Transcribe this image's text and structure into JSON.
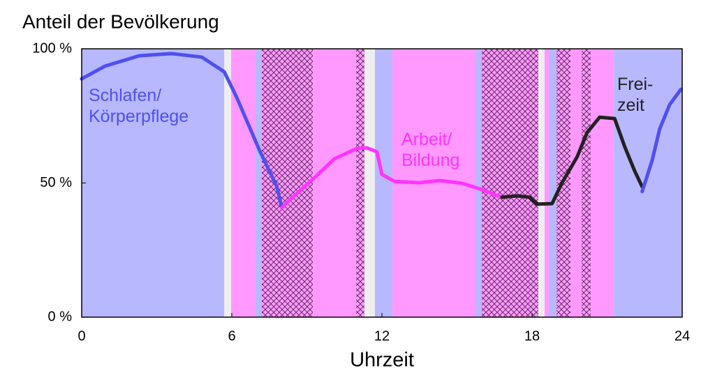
{
  "chart_data": {
    "type": "line",
    "title": "Anteil der Bevölkerung",
    "x_label": "Uhrzeit",
    "xlim": [
      0,
      24
    ],
    "xticks": [
      0,
      6,
      12,
      18,
      24
    ],
    "ylim": [
      0,
      100
    ],
    "yticks": [
      {
        "value": 0,
        "label": "0 %"
      },
      {
        "value": 50,
        "label": "50 %"
      },
      {
        "value": 100,
        "label": "100 %"
      }
    ],
    "bands": [
      {
        "x": [
          0,
          5.7
        ],
        "color": "#b8b8ff",
        "hatch": false
      },
      {
        "x": [
          5.7,
          5.97
        ],
        "color": "#eeeeee",
        "hatch": false
      },
      {
        "x": [
          5.97,
          6.95
        ],
        "color": "#ff99ff",
        "hatch": false
      },
      {
        "x": [
          6.95,
          7.2
        ],
        "color": "#b8b8ff",
        "hatch": false
      },
      {
        "x": [
          7.2,
          9.24
        ],
        "color": "#ff99ff",
        "hatch": true
      },
      {
        "x": [
          9.24,
          10.97
        ],
        "color": "#ff99ff",
        "hatch": false
      },
      {
        "x": [
          10.97,
          11.3
        ],
        "color": "#ff99ff",
        "hatch": true
      },
      {
        "x": [
          11.3,
          11.72
        ],
        "color": "#eeeeee",
        "hatch": false
      },
      {
        "x": [
          11.72,
          12.42
        ],
        "color": "#b8b8ff",
        "hatch": false
      },
      {
        "x": [
          12.42,
          15.74
        ],
        "color": "#ff99ff",
        "hatch": false
      },
      {
        "x": [
          15.74,
          15.99
        ],
        "color": "#b8b8ff",
        "hatch": false
      },
      {
        "x": [
          15.99,
          18.25
        ],
        "color": "#ff99ff",
        "hatch": true
      },
      {
        "x": [
          18.25,
          18.5
        ],
        "color": "#eeeeee",
        "hatch": false
      },
      {
        "x": [
          18.5,
          18.67
        ],
        "color": "#ff99ff",
        "hatch": false
      },
      {
        "x": [
          18.67,
          18.98
        ],
        "color": "#b8b8ff",
        "hatch": false
      },
      {
        "x": [
          18.98,
          19.54
        ],
        "color": "#ff99ff",
        "hatch": true
      },
      {
        "x": [
          19.54,
          19.98
        ],
        "color": "#ff99ff",
        "hatch": false
      },
      {
        "x": [
          19.98,
          20.35
        ],
        "color": "#ff99ff",
        "hatch": true
      },
      {
        "x": [
          20.35,
          21.27
        ],
        "color": "#ff99ff",
        "hatch": false
      },
      {
        "x": [
          21.27,
          24
        ],
        "color": "#b8b8ff",
        "hatch": false
      }
    ],
    "series": [
      {
        "name": "Schlafen/\nKörperpflege",
        "color": "#5050f0",
        "x": [
          0,
          0.92,
          2.3,
          3.6,
          4.8,
          5.7,
          6.2,
          6.8,
          7.1,
          7.5,
          7.8,
          8.0
        ],
        "values": [
          88.8,
          93.5,
          97.4,
          98.2,
          96.9,
          91.4,
          81.8,
          68.8,
          62.3,
          54.5,
          48.6,
          40.8
        ]
      },
      {
        "name": "Arbeit/\nBildung",
        "color": "#ff33ff",
        "x": [
          8.0,
          8.45,
          9.3,
          10.1,
          11.0,
          11.4,
          11.8,
          12.0,
          12.5,
          13.5,
          14.3,
          15.2,
          16.0,
          16.8
        ],
        "values": [
          40.8,
          44.9,
          51.9,
          59.0,
          62.9,
          63.1,
          61.6,
          53.2,
          50.6,
          50.1,
          50.9,
          49.9,
          47.5,
          44.7
        ]
      },
      {
        "name": "Frei-\nzeit",
        "color": "#222222",
        "x": [
          16.8,
          17.4,
          17.9,
          18.2,
          18.8,
          19.2,
          19.8,
          20.2,
          20.7,
          21.3,
          21.7,
          22.1,
          22.4
        ],
        "values": [
          44.7,
          45.2,
          44.7,
          42.1,
          42.3,
          50.1,
          59.7,
          68.8,
          74.5,
          74.0,
          63.6,
          54.5,
          48.6
        ]
      },
      {
        "color": "#5050f0",
        "x": [
          22.4,
          22.8,
          23.1,
          23.5,
          23.95
        ],
        "values": [
          46.8,
          58.4,
          70.1,
          79.2,
          84.9
        ]
      }
    ]
  }
}
